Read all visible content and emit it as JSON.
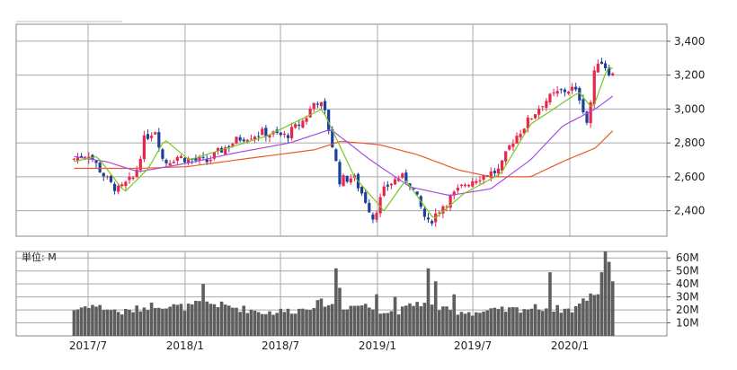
{
  "chart_data": [
    {
      "type": "candlestick",
      "title": "",
      "ylim": [
        2250,
        3500
      ],
      "y_ticks": [
        2400,
        2600,
        2800,
        3000,
        3200,
        3400
      ],
      "y_tick_labels": [
        "2,400",
        "2,600",
        "2,800",
        "3,000",
        "3,200",
        "3,400"
      ],
      "x_ticks": [
        "2017-07",
        "2018-01",
        "2018-07",
        "2019-01",
        "2019-07",
        "2020-01"
      ],
      "grid": true,
      "colors": {
        "up": "#e8254b",
        "down": "#1c3f9e",
        "ma_short": "#79c720",
        "ma_mid": "#a64ee0",
        "ma_long": "#e85a2a",
        "grid": "#a8a8a8"
      },
      "close_keyframes": [
        [
          "2017-06-01",
          2700
        ],
        [
          "2017-06-20",
          2720
        ],
        [
          "2017-07-05",
          2740
        ],
        [
          "2017-07-25",
          2650
        ],
        [
          "2017-08-15",
          2560
        ],
        [
          "2017-09-01",
          2520
        ],
        [
          "2017-09-15",
          2560
        ],
        [
          "2017-10-01",
          2600
        ],
        [
          "2017-10-20",
          2830
        ],
        [
          "2017-11-10",
          2880
        ],
        [
          "2017-11-25",
          2680
        ],
        [
          "2017-12-20",
          2720
        ],
        [
          "2018-01-15",
          2700
        ],
        [
          "2018-02-15",
          2690
        ],
        [
          "2018-03-15",
          2760
        ],
        [
          "2018-04-20",
          2830
        ],
        [
          "2018-06-01",
          2860
        ],
        [
          "2018-07-15",
          2840
        ],
        [
          "2018-08-20",
          2940
        ],
        [
          "2018-09-10",
          3060
        ],
        [
          "2018-09-25",
          3000
        ],
        [
          "2018-10-10",
          2800
        ],
        [
          "2018-10-25",
          2580
        ],
        [
          "2018-11-20",
          2600
        ],
        [
          "2018-12-15",
          2450
        ],
        [
          "2018-12-27",
          2360
        ],
        [
          "2019-01-20",
          2540
        ],
        [
          "2019-02-15",
          2600
        ],
        [
          "2019-03-05",
          2580
        ],
        [
          "2019-03-25",
          2440
        ],
        [
          "2019-04-10",
          2320
        ],
        [
          "2019-05-05",
          2420
        ],
        [
          "2019-05-25",
          2480
        ],
        [
          "2019-06-20",
          2560
        ],
        [
          "2019-07-15",
          2600
        ],
        [
          "2019-08-05",
          2620
        ],
        [
          "2019-08-25",
          2640
        ],
        [
          "2019-09-15",
          2800
        ],
        [
          "2019-10-15",
          2920
        ],
        [
          "2019-11-15",
          3040
        ],
        [
          "2019-12-15",
          3100
        ],
        [
          "2020-01-10",
          3120
        ],
        [
          "2020-01-25",
          3060
        ],
        [
          "2020-02-08",
          2900
        ],
        [
          "2020-02-18",
          3180
        ],
        [
          "2020-02-28",
          3300
        ],
        [
          "2020-03-10",
          3260
        ],
        [
          "2020-03-25",
          3200
        ]
      ],
      "ma_short": [
        [
          "2017-06-01",
          2690
        ],
        [
          "2017-07-15",
          2720
        ],
        [
          "2017-09-05",
          2510
        ],
        [
          "2017-10-20",
          2650
        ],
        [
          "2017-11-20",
          2820
        ],
        [
          "2018-01-05",
          2700
        ],
        [
          "2018-06-01",
          2840
        ],
        [
          "2018-09-15",
          3000
        ],
        [
          "2018-11-15",
          2600
        ],
        [
          "2019-01-10",
          2400
        ],
        [
          "2019-02-20",
          2580
        ],
        [
          "2019-04-15",
          2350
        ],
        [
          "2019-06-10",
          2500
        ],
        [
          "2019-08-20",
          2620
        ],
        [
          "2019-10-15",
          2910
        ],
        [
          "2020-01-15",
          3100
        ],
        [
          "2020-02-10",
          3000
        ],
        [
          "2020-03-10",
          3250
        ],
        [
          "2020-03-25",
          3230
        ]
      ],
      "ma_mid": [
        [
          "2017-06-01",
          2720
        ],
        [
          "2017-08-01",
          2690
        ],
        [
          "2017-10-01",
          2630
        ],
        [
          "2018-01-01",
          2680
        ],
        [
          "2018-04-01",
          2740
        ],
        [
          "2018-07-15",
          2800
        ],
        [
          "2018-10-01",
          2880
        ],
        [
          "2018-12-15",
          2700
        ],
        [
          "2019-03-01",
          2540
        ],
        [
          "2019-05-15",
          2490
        ],
        [
          "2019-08-01",
          2530
        ],
        [
          "2019-10-15",
          2700
        ],
        [
          "2019-12-15",
          2900
        ],
        [
          "2020-02-15",
          3000
        ],
        [
          "2020-03-25",
          3090
        ]
      ],
      "ma_long": [
        [
          "2017-06-01",
          2650
        ],
        [
          "2017-10-01",
          2650
        ],
        [
          "2018-01-01",
          2660
        ],
        [
          "2018-05-01",
          2710
        ],
        [
          "2018-09-01",
          2760
        ],
        [
          "2018-10-20",
          2810
        ],
        [
          "2019-01-01",
          2790
        ],
        [
          "2019-03-15",
          2730
        ],
        [
          "2019-06-01",
          2640
        ],
        [
          "2019-08-01",
          2600
        ],
        [
          "2019-10-15",
          2600
        ],
        [
          "2019-12-15",
          2690
        ],
        [
          "2020-02-15",
          2770
        ],
        [
          "2020-03-25",
          2890
        ]
      ]
    },
    {
      "type": "bar",
      "unit_label": "単位: M",
      "ylim": [
        0,
        65
      ],
      "y_ticks": [
        10,
        20,
        30,
        40,
        50,
        60
      ],
      "y_tick_labels": [
        "10M",
        "20M",
        "30M",
        "40M",
        "50M",
        "60M"
      ],
      "x_tick_labels": [
        "2017/7",
        "2018/1",
        "2018/7",
        "2019/1",
        "2019/7",
        "2020/1"
      ],
      "bar_color": "#5e5e5e",
      "volume_keyframes": [
        [
          "2017-06-01",
          20
        ],
        [
          "2017-07-01",
          24
        ],
        [
          "2017-09-01",
          18
        ],
        [
          "2017-11-01",
          24
        ],
        [
          "2018-01-01",
          22
        ],
        [
          "2018-02-01",
          26
        ],
        [
          "2018-04-01",
          22
        ],
        [
          "2018-06-01",
          18
        ],
        [
          "2018-08-01",
          20
        ],
        [
          "2018-09-15",
          26
        ],
        [
          "2018-10-15",
          22
        ],
        [
          "2018-12-01",
          24
        ],
        [
          "2019-01-15",
          18
        ],
        [
          "2019-02-15",
          20
        ],
        [
          "2019-03-15",
          26
        ],
        [
          "2019-05-01",
          20
        ],
        [
          "2019-07-01",
          18
        ],
        [
          "2019-09-01",
          20
        ],
        [
          "2019-11-01",
          22
        ],
        [
          "2020-01-01",
          20
        ],
        [
          "2020-02-15",
          34
        ],
        [
          "2020-03-25",
          20
        ]
      ],
      "volume_spikes": [
        [
          "2018-01-30",
          40
        ],
        [
          "2018-10-10",
          52
        ],
        [
          "2018-10-20",
          37
        ],
        [
          "2018-12-27",
          32
        ],
        [
          "2019-01-30",
          30
        ],
        [
          "2019-04-05",
          52
        ],
        [
          "2019-04-15",
          42
        ],
        [
          "2019-05-20",
          32
        ],
        [
          "2019-11-20",
          49
        ],
        [
          "2020-02-25",
          49
        ],
        [
          "2020-03-05",
          65
        ],
        [
          "2020-03-12",
          57
        ],
        [
          "2020-03-18",
          42
        ]
      ]
    }
  ]
}
